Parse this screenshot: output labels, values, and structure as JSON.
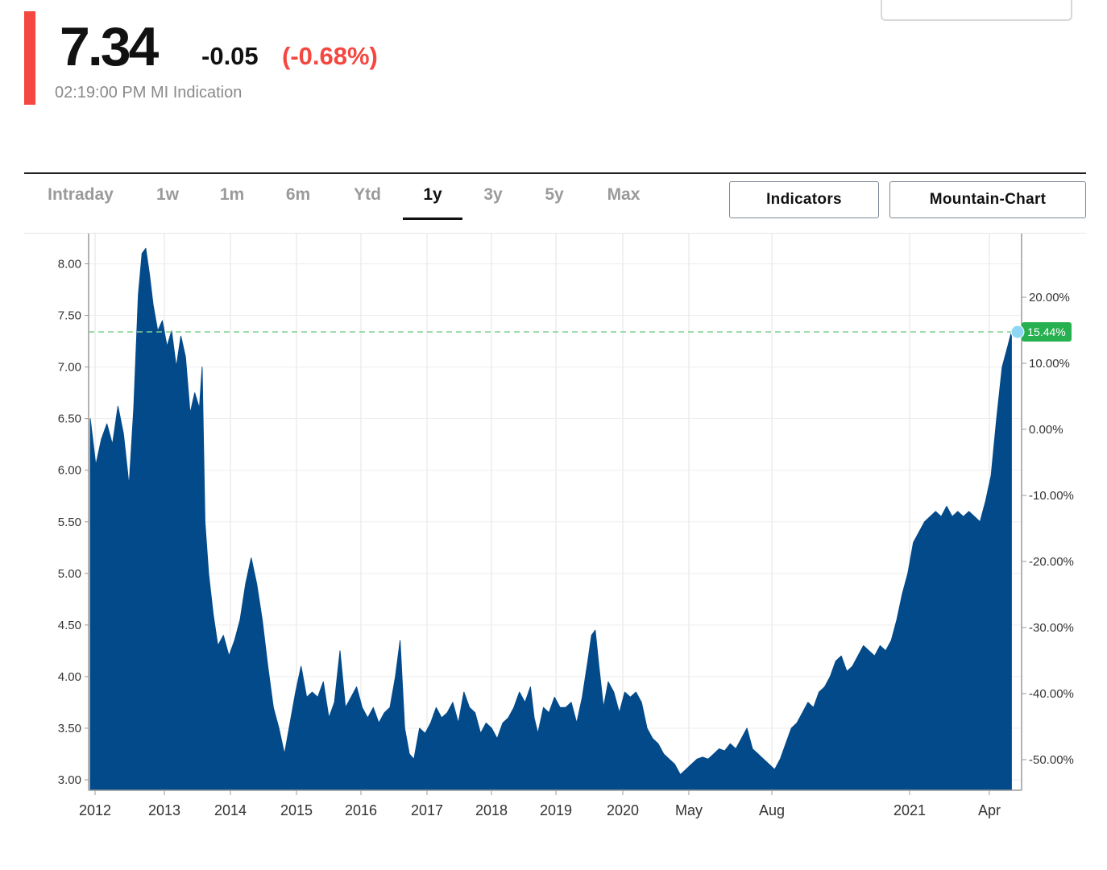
{
  "quote": {
    "price": "7.34",
    "change": "-0.05",
    "change_percent": "(-0.68%)",
    "indication": "02:19:00 PM MI Indication"
  },
  "colors": {
    "accent": "#f4473f",
    "negative": "#f4473f",
    "area_fill": "#034a8a",
    "badge": "#27b04f",
    "reference_line": "#7fd08f",
    "marker": "#8dd7f5"
  },
  "range_tabs": [
    {
      "label": "Intraday",
      "active": false
    },
    {
      "label": "1w",
      "active": false
    },
    {
      "label": "1m",
      "active": false
    },
    {
      "label": "6m",
      "active": false
    },
    {
      "label": "Ytd",
      "active": false
    },
    {
      "label": "1y",
      "active": true
    },
    {
      "label": "3y",
      "active": false
    },
    {
      "label": "5y",
      "active": false
    },
    {
      "label": "Max",
      "active": false
    }
  ],
  "buttons": {
    "indicators": "Indicators",
    "chart_type": "Mountain-Chart"
  },
  "chart_data": {
    "type": "area",
    "title": "",
    "xlabel": "",
    "ylabel": "",
    "x_tick_labels": [
      "2012",
      "2013",
      "2014",
      "2015",
      "2016",
      "2017",
      "2018",
      "2019",
      "2020",
      "May",
      "Aug",
      "2021",
      "Apr"
    ],
    "left_axis": {
      "ylim": [
        2.9,
        8.3
      ],
      "ticks": [
        "3.00",
        "3.50",
        "4.00",
        "4.50",
        "5.00",
        "5.50",
        "6.00",
        "6.50",
        "7.00",
        "7.50",
        "8.00"
      ]
    },
    "right_axis": {
      "unit": "percent change",
      "ticks": [
        "20.00%",
        "10.00%",
        "0.00%",
        "-10.00%",
        "-20.00%",
        "-30.00%",
        "-40.00%",
        "-50.00%"
      ]
    },
    "reference_line": {
      "value": 7.34,
      "label": "15.44%"
    },
    "grid": true,
    "series": [
      {
        "points": [
          [
            0,
            6.5
          ],
          [
            0.006,
            6.05
          ],
          [
            0.012,
            6.3
          ],
          [
            0.018,
            6.45
          ],
          [
            0.024,
            6.25
          ],
          [
            0.03,
            6.62
          ],
          [
            0.036,
            6.35
          ],
          [
            0.042,
            5.85
          ],
          [
            0.047,
            6.6
          ],
          [
            0.052,
            7.7
          ],
          [
            0.056,
            8.1
          ],
          [
            0.06,
            8.15
          ],
          [
            0.064,
            7.9
          ],
          [
            0.068,
            7.6
          ],
          [
            0.073,
            7.35
          ],
          [
            0.078,
            7.45
          ],
          [
            0.083,
            7.2
          ],
          [
            0.088,
            7.35
          ],
          [
            0.093,
            7.0
          ],
          [
            0.098,
            7.3
          ],
          [
            0.103,
            7.1
          ],
          [
            0.108,
            6.55
          ],
          [
            0.113,
            6.75
          ],
          [
            0.118,
            6.6
          ],
          [
            0.121,
            7.0
          ],
          [
            0.124,
            5.5
          ],
          [
            0.128,
            5.0
          ],
          [
            0.133,
            4.6
          ],
          [
            0.138,
            4.3
          ],
          [
            0.144,
            4.4
          ],
          [
            0.15,
            4.2
          ],
          [
            0.156,
            4.35
          ],
          [
            0.162,
            4.55
          ],
          [
            0.168,
            4.9
          ],
          [
            0.174,
            5.15
          ],
          [
            0.18,
            4.9
          ],
          [
            0.186,
            4.55
          ],
          [
            0.192,
            4.1
          ],
          [
            0.198,
            3.7
          ],
          [
            0.204,
            3.5
          ],
          [
            0.21,
            3.25
          ],
          [
            0.216,
            3.55
          ],
          [
            0.222,
            3.85
          ],
          [
            0.228,
            4.1
          ],
          [
            0.234,
            3.8
          ],
          [
            0.24,
            3.85
          ],
          [
            0.246,
            3.8
          ],
          [
            0.252,
            3.95
          ],
          [
            0.258,
            3.6
          ],
          [
            0.264,
            3.75
          ],
          [
            0.27,
            4.25
          ],
          [
            0.276,
            3.7
          ],
          [
            0.282,
            3.8
          ],
          [
            0.288,
            3.9
          ],
          [
            0.294,
            3.7
          ],
          [
            0.3,
            3.6
          ],
          [
            0.306,
            3.7
          ],
          [
            0.312,
            3.55
          ],
          [
            0.318,
            3.65
          ],
          [
            0.324,
            3.7
          ],
          [
            0.33,
            4.0
          ],
          [
            0.335,
            4.35
          ],
          [
            0.34,
            3.5
          ],
          [
            0.345,
            3.25
          ],
          [
            0.35,
            3.2
          ],
          [
            0.356,
            3.5
          ],
          [
            0.362,
            3.45
          ],
          [
            0.368,
            3.55
          ],
          [
            0.374,
            3.7
          ],
          [
            0.38,
            3.6
          ],
          [
            0.386,
            3.65
          ],
          [
            0.392,
            3.75
          ],
          [
            0.398,
            3.55
          ],
          [
            0.404,
            3.85
          ],
          [
            0.41,
            3.7
          ],
          [
            0.416,
            3.65
          ],
          [
            0.422,
            3.45
          ],
          [
            0.428,
            3.55
          ],
          [
            0.434,
            3.5
          ],
          [
            0.44,
            3.4
          ],
          [
            0.446,
            3.55
          ],
          [
            0.452,
            3.6
          ],
          [
            0.458,
            3.7
          ],
          [
            0.464,
            3.85
          ],
          [
            0.47,
            3.75
          ],
          [
            0.476,
            3.9
          ],
          [
            0.48,
            3.6
          ],
          [
            0.484,
            3.45
          ],
          [
            0.49,
            3.7
          ],
          [
            0.496,
            3.65
          ],
          [
            0.502,
            3.8
          ],
          [
            0.508,
            3.7
          ],
          [
            0.514,
            3.7
          ],
          [
            0.52,
            3.75
          ],
          [
            0.526,
            3.55
          ],
          [
            0.532,
            3.8
          ],
          [
            0.538,
            4.15
          ],
          [
            0.542,
            4.4
          ],
          [
            0.546,
            4.45
          ],
          [
            0.55,
            4.1
          ],
          [
            0.555,
            3.7
          ],
          [
            0.56,
            3.95
          ],
          [
            0.566,
            3.85
          ],
          [
            0.572,
            3.65
          ],
          [
            0.578,
            3.85
          ],
          [
            0.584,
            3.8
          ],
          [
            0.59,
            3.85
          ],
          [
            0.596,
            3.75
          ],
          [
            0.602,
            3.5
          ],
          [
            0.608,
            3.4
          ],
          [
            0.614,
            3.35
          ],
          [
            0.62,
            3.25
          ],
          [
            0.626,
            3.2
          ],
          [
            0.632,
            3.15
          ],
          [
            0.638,
            3.05
          ],
          [
            0.644,
            3.1
          ],
          [
            0.65,
            3.15
          ],
          [
            0.656,
            3.2
          ],
          [
            0.662,
            3.22
          ],
          [
            0.668,
            3.2
          ],
          [
            0.674,
            3.25
          ],
          [
            0.68,
            3.3
          ],
          [
            0.686,
            3.28
          ],
          [
            0.692,
            3.35
          ],
          [
            0.698,
            3.3
          ],
          [
            0.704,
            3.4
          ],
          [
            0.71,
            3.5
          ],
          [
            0.716,
            3.3
          ],
          [
            0.722,
            3.25
          ],
          [
            0.728,
            3.2
          ],
          [
            0.734,
            3.15
          ],
          [
            0.74,
            3.1
          ],
          [
            0.746,
            3.2
          ],
          [
            0.752,
            3.35
          ],
          [
            0.758,
            3.5
          ],
          [
            0.764,
            3.55
          ],
          [
            0.77,
            3.65
          ],
          [
            0.776,
            3.75
          ],
          [
            0.782,
            3.7
          ],
          [
            0.788,
            3.85
          ],
          [
            0.794,
            3.9
          ],
          [
            0.8,
            4.0
          ],
          [
            0.806,
            4.15
          ],
          [
            0.812,
            4.2
          ],
          [
            0.818,
            4.05
          ],
          [
            0.824,
            4.1
          ],
          [
            0.83,
            4.2
          ],
          [
            0.836,
            4.3
          ],
          [
            0.842,
            4.25
          ],
          [
            0.848,
            4.2
          ],
          [
            0.854,
            4.3
          ],
          [
            0.86,
            4.25
          ],
          [
            0.866,
            4.35
          ],
          [
            0.872,
            4.55
          ],
          [
            0.878,
            4.8
          ],
          [
            0.884,
            5.0
          ],
          [
            0.89,
            5.3
          ],
          [
            0.896,
            5.4
          ],
          [
            0.902,
            5.5
          ],
          [
            0.908,
            5.55
          ],
          [
            0.914,
            5.6
          ],
          [
            0.92,
            5.55
          ],
          [
            0.926,
            5.65
          ],
          [
            0.932,
            5.55
          ],
          [
            0.938,
            5.6
          ],
          [
            0.944,
            5.55
          ],
          [
            0.95,
            5.6
          ],
          [
            0.956,
            5.55
          ],
          [
            0.962,
            5.5
          ],
          [
            0.968,
            5.7
          ],
          [
            0.974,
            5.95
          ],
          [
            0.98,
            6.5
          ],
          [
            0.986,
            7.0
          ],
          [
            0.992,
            7.2
          ],
          [
            0.996,
            7.34
          ]
        ]
      }
    ]
  }
}
